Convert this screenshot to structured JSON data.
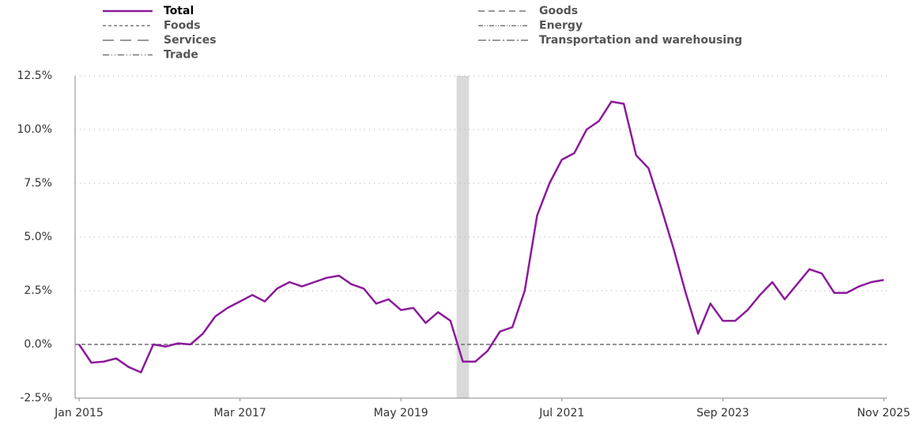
{
  "chart_data": {
    "type": "line",
    "x": [
      "Jan 2015",
      "Mar 2015",
      "May 2015",
      "Jul 2015",
      "Sep 2015",
      "Nov 2015",
      "Jan 2016",
      "Mar 2016",
      "May 2016",
      "Jul 2016",
      "Sep 2016",
      "Nov 2016",
      "Jan 2017",
      "Mar 2017",
      "May 2017",
      "Jul 2017",
      "Sep 2017",
      "Nov 2017",
      "Jan 2018",
      "Mar 2018",
      "May 2018",
      "Jul 2018",
      "Sep 2018",
      "Nov 2018",
      "Jan 2019",
      "Mar 2019",
      "May 2019",
      "Jul 2019",
      "Sep 2019",
      "Nov 2019",
      "Jan 2020",
      "Mar 2020",
      "May 2020",
      "Jul 2020",
      "Sep 2020",
      "Nov 2020",
      "Jan 2021",
      "Mar 2021",
      "May 2021",
      "Jul 2021",
      "Sep 2021",
      "Nov 2021",
      "Jan 2022",
      "Mar 2022",
      "May 2022",
      "Jul 2022",
      "Sep 2022",
      "Nov 2022",
      "Jan 2023",
      "Mar 2023",
      "May 2023",
      "Jul 2023",
      "Sep 2023",
      "Nov 2023",
      "Jan 2024",
      "Mar 2024",
      "May 2024",
      "Jul 2024",
      "Sep 2024",
      "Nov 2024",
      "Jan 2025",
      "Mar 2025",
      "May 2025",
      "Jul 2025",
      "Sep 2025",
      "Nov 2025"
    ],
    "series": [
      {
        "name": "Total",
        "color": "#8b1a9b",
        "dash": "none",
        "values": [
          0.0,
          -0.85,
          -0.8,
          -0.65,
          -1.05,
          -1.3,
          0.0,
          -0.1,
          0.05,
          0.0,
          0.5,
          1.3,
          1.7,
          2.0,
          2.3,
          2.0,
          2.6,
          2.9,
          2.7,
          2.9,
          3.1,
          3.2,
          2.8,
          2.6,
          1.9,
          2.1,
          1.6,
          1.7,
          1.0,
          1.5,
          1.1,
          -0.8,
          -0.8,
          -0.3,
          0.6,
          0.8,
          2.5,
          6.0,
          7.5,
          8.6,
          8.9,
          10.0,
          10.4,
          11.3,
          11.2,
          8.8,
          8.2,
          6.4,
          4.5,
          2.4,
          0.5,
          1.9,
          1.1,
          1.1,
          1.6,
          2.3,
          2.9,
          2.1,
          2.8,
          3.5,
          3.3,
          2.4,
          2.4,
          2.7,
          2.9,
          3.0
        ]
      },
      {
        "name": "Goods",
        "color": "#777777",
        "dash": "8,5",
        "values": null
      },
      {
        "name": "Foods",
        "color": "#777777",
        "dash": "4,3",
        "values": null
      },
      {
        "name": "Energy",
        "color": "#777777",
        "dash": "6,2,1,2,1,2",
        "values": null
      },
      {
        "name": "Services",
        "color": "#777777",
        "dash": "14,8",
        "values": null
      },
      {
        "name": "Transportation and warehousing",
        "color": "#777777",
        "dash": "10,3,2,3",
        "values": null
      },
      {
        "name": "Trade",
        "color": "#777777",
        "dash": "8,3,1,3,1,3",
        "values": null
      }
    ],
    "shaded": {
      "start": "Feb 2020",
      "end": "Apr 2020",
      "color": "#d9d9d9"
    },
    "xticks": [
      "Jan 2015",
      "Mar 2017",
      "May 2019",
      "Jul 2021",
      "Sep 2023",
      "Nov 2025"
    ],
    "ylim": [
      -2.5,
      12.5
    ],
    "yticks": [
      {
        "value": -2.5,
        "label": "-2.5%"
      },
      {
        "value": 0,
        "label": "0.0%"
      },
      {
        "value": 2.5,
        "label": "2.5%"
      },
      {
        "value": 5,
        "label": "5.0%"
      },
      {
        "value": 7.5,
        "label": "7.5%"
      },
      {
        "value": 10,
        "label": "10.0%"
      },
      {
        "value": 12.5,
        "label": "12.5%"
      }
    ],
    "grid": true
  }
}
